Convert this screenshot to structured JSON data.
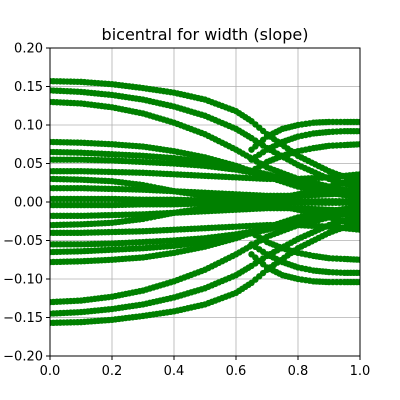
{
  "chart_data": {
    "type": "scatter",
    "title": "bicentral for width (slope)",
    "xlabel": "",
    "ylabel": "",
    "xlim": [
      0.0,
      1.0
    ],
    "ylim": [
      -0.2,
      0.2
    ],
    "grid": true,
    "marker_color": "#008000",
    "x_ticks": [
      "0.0",
      "0.2",
      "0.4",
      "0.6",
      "0.8",
      "1.0"
    ],
    "y_ticks": [
      "0.20",
      "0.15",
      "0.10",
      "0.05",
      "0.00",
      "−0.05",
      "−0.10",
      "−0.15",
      "−0.20"
    ],
    "series": [
      {
        "x": [
          0.0,
          0.1,
          0.2,
          0.3,
          0.4,
          0.5,
          0.6,
          0.65,
          0.7,
          0.8,
          0.9,
          1.0
        ],
        "y": [
          0.157,
          0.156,
          0.153,
          0.148,
          0.142,
          0.133,
          0.118,
          0.105,
          0.088,
          0.06,
          0.04,
          0.025
        ]
      },
      {
        "x": [
          0.0,
          0.1,
          0.2,
          0.3,
          0.4,
          0.5,
          0.6,
          0.65,
          0.7,
          0.8,
          0.9,
          1.0
        ],
        "y": [
          0.145,
          0.143,
          0.139,
          0.133,
          0.124,
          0.112,
          0.095,
          0.083,
          0.07,
          0.048,
          0.03,
          0.018
        ]
      },
      {
        "x": [
          0.0,
          0.1,
          0.2,
          0.3,
          0.4,
          0.5,
          0.6,
          0.7,
          0.8,
          0.9,
          1.0
        ],
        "y": [
          0.13,
          0.128,
          0.123,
          0.115,
          0.103,
          0.088,
          0.068,
          0.045,
          0.03,
          0.02,
          0.012
        ]
      },
      {
        "x": [
          0.0,
          0.1,
          0.2,
          0.3,
          0.4,
          0.5,
          0.6,
          0.7,
          0.8,
          0.9,
          1.0
        ],
        "y": [
          0.078,
          0.077,
          0.075,
          0.072,
          0.066,
          0.058,
          0.047,
          0.033,
          0.02,
          0.012,
          0.006
        ]
      },
      {
        "x": [
          0.0,
          0.1,
          0.2,
          0.3,
          0.4,
          0.5,
          0.6,
          0.7,
          0.8,
          0.9,
          1.0
        ],
        "y": [
          0.065,
          0.064,
          0.062,
          0.06,
          0.057,
          0.052,
          0.045,
          0.036,
          0.025,
          0.015,
          0.008
        ]
      },
      {
        "x": [
          0.0,
          0.1,
          0.2,
          0.3,
          0.4,
          0.5,
          0.6,
          0.7,
          0.8,
          0.9,
          1.0
        ],
        "y": [
          0.055,
          0.055,
          0.054,
          0.052,
          0.05,
          0.047,
          0.042,
          0.035,
          0.026,
          0.018,
          0.01
        ]
      },
      {
        "x": [
          0.0,
          0.1,
          0.2,
          0.3,
          0.35,
          0.4,
          0.5,
          0.6,
          0.7,
          0.8,
          0.9,
          1.0
        ],
        "y": [
          0.03,
          0.029,
          0.027,
          0.022,
          0.018,
          0.014,
          0.008,
          0.004,
          0.002,
          0.01,
          0.02,
          0.03
        ]
      },
      {
        "x": [
          0.0,
          0.1,
          0.2,
          0.3,
          0.4,
          0.5,
          0.6,
          0.7,
          0.8,
          0.9,
          1.0
        ],
        "y": [
          0.018,
          0.018,
          0.017,
          0.016,
          0.014,
          0.012,
          0.01,
          0.008,
          0.008,
          0.01,
          0.012
        ]
      },
      {
        "x": [
          0.0,
          0.1,
          0.2,
          0.3,
          0.4,
          0.5,
          0.6,
          0.7,
          0.8,
          0.9,
          1.0
        ],
        "y": [
          0.004,
          0.004,
          0.004,
          0.003,
          0.003,
          0.002,
          0.002,
          0.001,
          0.001,
          0.001,
          0.001
        ]
      },
      {
        "x": [
          0.0,
          0.1,
          0.2,
          0.3,
          0.4,
          0.5,
          0.6,
          0.7,
          0.8,
          0.9,
          1.0
        ],
        "y": [
          -0.004,
          -0.004,
          -0.004,
          -0.003,
          -0.003,
          -0.002,
          -0.002,
          -0.001,
          -0.001,
          -0.001,
          -0.001
        ]
      },
      {
        "x": [
          0.0,
          0.1,
          0.2,
          0.3,
          0.4,
          0.5,
          0.6,
          0.7,
          0.8,
          0.9,
          1.0
        ],
        "y": [
          -0.018,
          -0.018,
          -0.017,
          -0.016,
          -0.014,
          -0.012,
          -0.01,
          -0.008,
          -0.008,
          -0.01,
          -0.012
        ]
      },
      {
        "x": [
          0.0,
          0.1,
          0.2,
          0.3,
          0.35,
          0.4,
          0.5,
          0.6,
          0.7,
          0.8,
          0.9,
          1.0
        ],
        "y": [
          -0.03,
          -0.029,
          -0.027,
          -0.022,
          -0.018,
          -0.014,
          -0.008,
          -0.004,
          -0.002,
          -0.01,
          -0.02,
          -0.03
        ]
      },
      {
        "x": [
          0.0,
          0.1,
          0.2,
          0.3,
          0.4,
          0.5,
          0.6,
          0.7,
          0.8,
          0.9,
          1.0
        ],
        "y": [
          -0.055,
          -0.055,
          -0.054,
          -0.052,
          -0.05,
          -0.047,
          -0.042,
          -0.035,
          -0.026,
          -0.018,
          -0.01
        ]
      },
      {
        "x": [
          0.0,
          0.1,
          0.2,
          0.3,
          0.4,
          0.5,
          0.6,
          0.7,
          0.8,
          0.9,
          1.0
        ],
        "y": [
          -0.065,
          -0.064,
          -0.062,
          -0.06,
          -0.057,
          -0.052,
          -0.045,
          -0.036,
          -0.025,
          -0.015,
          -0.008
        ]
      },
      {
        "x": [
          0.0,
          0.1,
          0.2,
          0.3,
          0.4,
          0.5,
          0.6,
          0.7,
          0.8,
          0.9,
          1.0
        ],
        "y": [
          -0.078,
          -0.077,
          -0.075,
          -0.072,
          -0.066,
          -0.058,
          -0.047,
          -0.033,
          -0.02,
          -0.012,
          -0.006
        ]
      },
      {
        "x": [
          0.0,
          0.1,
          0.2,
          0.3,
          0.4,
          0.5,
          0.6,
          0.7,
          0.8,
          0.9,
          1.0
        ],
        "y": [
          -0.13,
          -0.128,
          -0.123,
          -0.115,
          -0.103,
          -0.088,
          -0.068,
          -0.045,
          -0.03,
          -0.02,
          -0.012
        ]
      },
      {
        "x": [
          0.0,
          0.1,
          0.2,
          0.3,
          0.4,
          0.5,
          0.6,
          0.65,
          0.7,
          0.8,
          0.9,
          1.0
        ],
        "y": [
          -0.145,
          -0.143,
          -0.139,
          -0.133,
          -0.124,
          -0.112,
          -0.095,
          -0.083,
          -0.07,
          -0.048,
          -0.03,
          -0.018
        ]
      },
      {
        "x": [
          0.0,
          0.1,
          0.2,
          0.3,
          0.4,
          0.5,
          0.6,
          0.65,
          0.7,
          0.8,
          0.9,
          1.0
        ],
        "y": [
          -0.157,
          -0.156,
          -0.153,
          -0.148,
          -0.142,
          -0.133,
          -0.118,
          -0.105,
          -0.088,
          -0.06,
          -0.04,
          -0.025
        ]
      },
      {
        "x": [
          0.65,
          0.7,
          0.75,
          0.8,
          0.85,
          0.9,
          0.95,
          1.0
        ],
        "y": [
          0.068,
          0.085,
          0.095,
          0.1,
          0.103,
          0.104,
          0.104,
          0.104
        ]
      },
      {
        "x": [
          0.65,
          0.7,
          0.75,
          0.8,
          0.85,
          0.9,
          0.95,
          1.0
        ],
        "y": [
          0.055,
          0.068,
          0.078,
          0.085,
          0.089,
          0.091,
          0.092,
          0.092
        ]
      },
      {
        "x": [
          0.65,
          0.7,
          0.75,
          0.8,
          0.85,
          0.9,
          0.95,
          1.0
        ],
        "y": [
          0.04,
          0.052,
          0.06,
          0.066,
          0.07,
          0.073,
          0.074,
          0.075
        ]
      },
      {
        "x": [
          0.65,
          0.7,
          0.75,
          0.8,
          0.85,
          0.9,
          0.95,
          1.0
        ],
        "y": [
          -0.068,
          -0.085,
          -0.095,
          -0.1,
          -0.103,
          -0.104,
          -0.104,
          -0.104
        ]
      },
      {
        "x": [
          0.65,
          0.7,
          0.75,
          0.8,
          0.85,
          0.9,
          0.95,
          1.0
        ],
        "y": [
          -0.055,
          -0.068,
          -0.078,
          -0.085,
          -0.089,
          -0.091,
          -0.092,
          -0.092
        ]
      },
      {
        "x": [
          0.65,
          0.7,
          0.75,
          0.8,
          0.85,
          0.9,
          0.95,
          1.0
        ],
        "y": [
          -0.04,
          -0.052,
          -0.06,
          -0.066,
          -0.07,
          -0.073,
          -0.074,
          -0.075
        ]
      },
      {
        "x": [
          0.0,
          0.1,
          0.2,
          0.3,
          0.4,
          0.5,
          0.6,
          0.7,
          0.8,
          0.9,
          1.0
        ],
        "y": [
          0.04,
          0.04,
          0.039,
          0.038,
          0.036,
          0.034,
          0.032,
          0.03,
          0.03,
          0.032,
          0.036
        ]
      },
      {
        "x": [
          0.0,
          0.1,
          0.2,
          0.3,
          0.4,
          0.5,
          0.6,
          0.7,
          0.8,
          0.9,
          1.0
        ],
        "y": [
          -0.04,
          -0.04,
          -0.039,
          -0.038,
          -0.036,
          -0.034,
          -0.032,
          -0.03,
          -0.03,
          -0.032,
          -0.036
        ]
      }
    ]
  }
}
